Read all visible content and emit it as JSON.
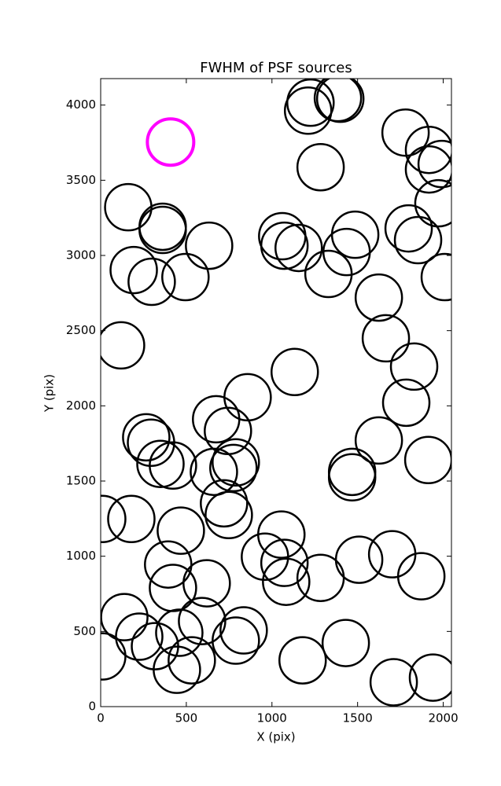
{
  "chart_data": {
    "type": "scatter",
    "title": "FWHM of PSF sources",
    "x_label": "X (pix)",
    "y_label": "Y (pix)",
    "xlim": [
      0,
      2048
    ],
    "ylim": [
      0,
      4176
    ],
    "xticks": [
      0,
      500,
      1000,
      1500,
      2000
    ],
    "yticks": [
      0,
      500,
      1000,
      1500,
      2000,
      2500,
      3000,
      3500,
      4000
    ],
    "grid": false,
    "series": [
      {
        "color": "#000000",
        "x": [
          1225,
          1399,
          1385,
          1211,
          1780,
          1917,
          1991,
          1917,
          1284,
          161,
          1972,
          362,
          362,
          633,
          1060,
          1073,
          1156,
          1486,
          1436,
          1798,
          1853,
          193,
          298,
          495,
          1330,
          2009,
          1624,
          1665,
          119,
          1133,
          1830,
          1784,
          858,
          674,
          743,
          266,
          294,
          1624,
          1913,
          349,
          422,
          789,
          775,
          1468,
          1468,
          661,
          720,
          748,
          9,
          179,
          468,
          1055,
          1702,
          1509,
          959,
          1073,
          1083,
          1284,
          1872,
          394,
          422,
          619,
          138,
          592,
          225,
          459,
          835,
          789,
          317,
          532,
          445,
          9,
          1179,
          1431,
          1711,
          1940
        ],
        "values": [
          4016,
          4042,
          4047,
          3963,
          3817,
          3702,
          3608,
          3572,
          3587,
          3321,
          3347,
          3191,
          3170,
          3065,
          3128,
          3065,
          3050,
          3138,
          3023,
          3180,
          3102,
          2903,
          2825,
          2856,
          2877,
          2856,
          2720,
          2449,
          2402,
          2225,
          2261,
          2021,
          2057,
          1911,
          1833,
          1791,
          1755,
          1770,
          1640,
          1614,
          1603,
          1624,
          1587,
          1561,
          1525,
          1561,
          1352,
          1274,
          1248,
          1248,
          1170,
          1144,
          1013,
          977,
          997,
          956,
          830,
          856,
          867,
          945,
          789,
          820,
          595,
          569,
          465,
          491,
          507,
          439,
          402,
          308,
          245,
          334,
          308,
          423,
          162,
          193
        ]
      },
      {
        "color": "#ff00ff",
        "x": [
          408
        ],
        "values": [
          3754
        ]
      }
    ]
  }
}
